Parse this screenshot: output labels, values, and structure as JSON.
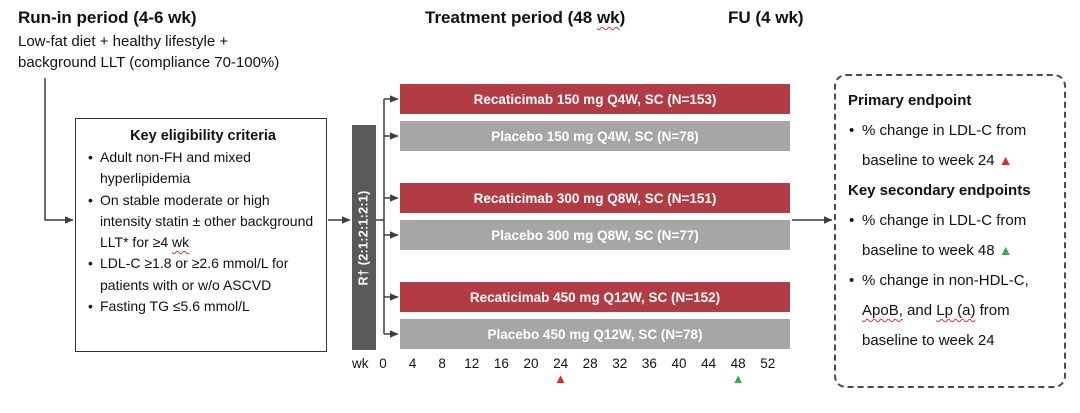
{
  "header": {
    "run_in_title": "Run-in period (4-6 wk)",
    "run_in_sub1": "Low-fat diet + healthy lifestyle +",
    "run_in_sub2": "background LLT (compliance 70-100%)",
    "treatment_pre": "Treatment period (48 ",
    "treatment_wk": "wk",
    "treatment_post": ")",
    "fu_title": "FU (4 wk)"
  },
  "eligibility": {
    "title": "Key eligibility criteria",
    "item1": "Adult non-FH and mixed hyperlipidemia",
    "item2_pre": "On stable moderate or high intensity statin ± other background LLT* for ≥4 ",
    "item2_wk": "wk",
    "item3": "LDL-C ≥1.8 or ≥2.6 mmol/L for patients with or w/o ASCVD",
    "item4": "Fasting TG ≤5.6 mmol/L"
  },
  "randomization": {
    "label": "R† (2:1:2:1:2:1)"
  },
  "arms": [
    {
      "label": "Recaticimab 150 mg Q4W, SC (N=153)",
      "type": "active"
    },
    {
      "label": "Placebo 150 mg Q4W, SC (N=78)",
      "type": "placebo"
    },
    {
      "label": "Recaticimab 300 mg Q8W, SC (N=151)",
      "type": "active"
    },
    {
      "label": "Placebo 300 mg Q8W, SC (N=77)",
      "type": "placebo"
    },
    {
      "label": "Recaticimab 450 mg Q12W, SC (N=152)",
      "type": "active"
    },
    {
      "label": "Placebo 450 mg Q12W, SC (N=78)",
      "type": "placebo"
    }
  ],
  "axis": {
    "unit": "wk",
    "ticks": [
      "0",
      "4",
      "8",
      "12",
      "16",
      "20",
      "24",
      "28",
      "32",
      "36",
      "40",
      "44",
      "48",
      "52"
    ],
    "primary_marker_week": 24,
    "secondary_marker_week": 48
  },
  "endpoints": {
    "primary_title": "Primary endpoint",
    "p1_text": "% change in LDL-C from baseline to week 24 ",
    "secondary_title": "Key secondary endpoints",
    "s1_text": "% change in LDL-C from baseline to week 48 ",
    "s2_pre": "% change in non-HDL-C, ",
    "s2_apob": "ApoB,",
    "s2_mid": " and ",
    "s2_lpa": "Lp (a)",
    "s2_post": " from baseline to week 24"
  },
  "colors": {
    "active_arm": "#b23c44",
    "placebo_arm": "#a6a6a6",
    "randomization_bar": "#595959",
    "primary_marker": "#e8251f",
    "secondary_marker": "#35b04a",
    "squiggle": "#e3342f"
  }
}
